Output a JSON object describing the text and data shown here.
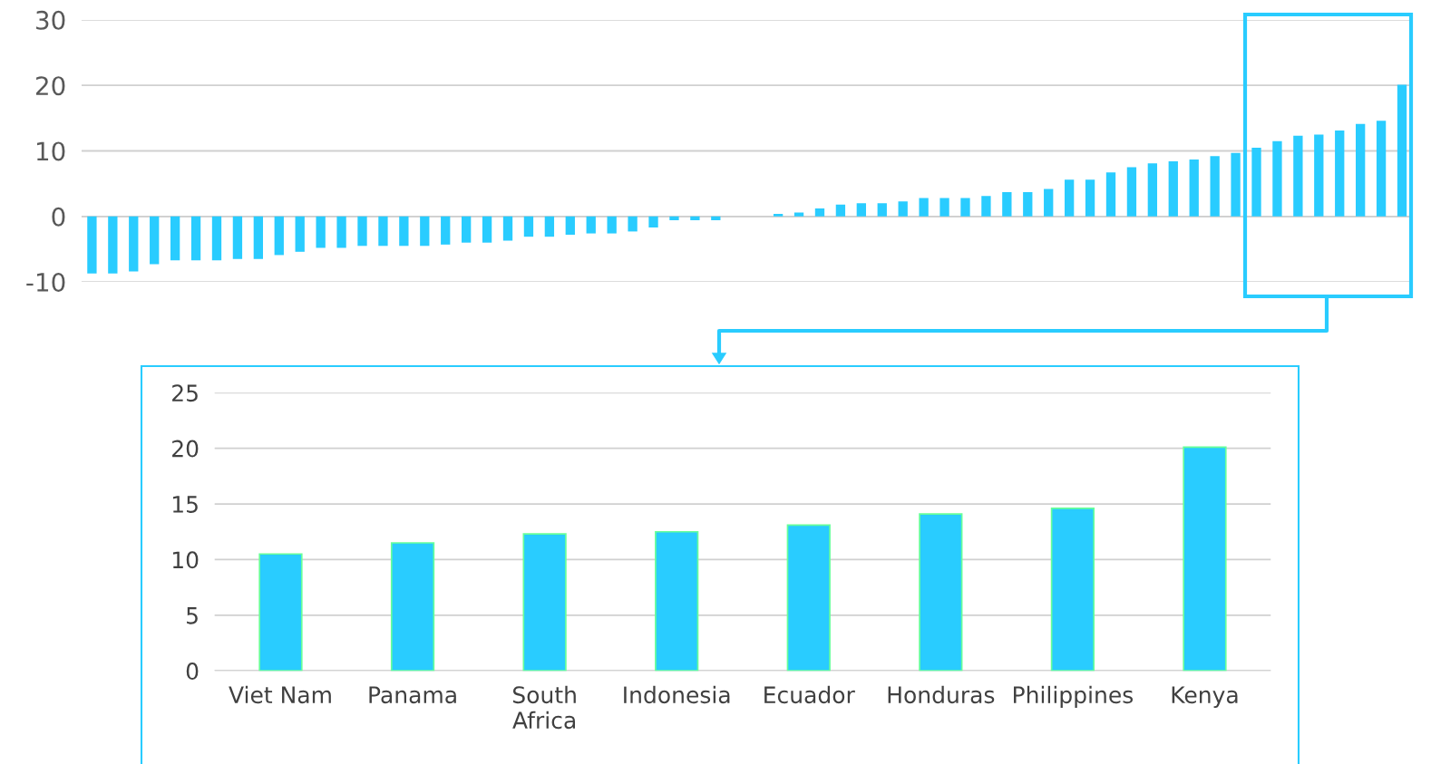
{
  "chart_data": [
    {
      "type": "bar",
      "categories": [
        null,
        null,
        null,
        null,
        null,
        null,
        null,
        null,
        null,
        null,
        null,
        null,
        null,
        null,
        null,
        null,
        null,
        null,
        null,
        null,
        null,
        null,
        null,
        null,
        null,
        null,
        null,
        null,
        null,
        null,
        null,
        null,
        null,
        null,
        null,
        null,
        null,
        null,
        null,
        null,
        null,
        null,
        null,
        null,
        null,
        null,
        null,
        null,
        null,
        null,
        null,
        null,
        null,
        null,
        null,
        null,
        null,
        null,
        null,
        null,
        null,
        null,
        null,
        null
      ],
      "values": [
        -8.7,
        -8.7,
        -8.4,
        -7.3,
        -6.7,
        -6.7,
        -6.7,
        -6.5,
        -6.5,
        -5.9,
        -5.4,
        -4.8,
        -4.8,
        -4.5,
        -4.5,
        -4.5,
        -4.5,
        -4.3,
        -4.0,
        -4.0,
        -3.7,
        -3.1,
        -3.1,
        -2.8,
        -2.6,
        -2.6,
        -2.3,
        -1.7,
        -0.6,
        -0.6,
        -0.6,
        0,
        0,
        0.4,
        0.6,
        1.2,
        1.8,
        2.0,
        2.0,
        2.3,
        2.8,
        2.8,
        2.8,
        3.1,
        3.7,
        3.7,
        4.2,
        5.6,
        5.6,
        6.7,
        7.5,
        8.1,
        8.4,
        8.7,
        9.2,
        9.7,
        10.5,
        11.5,
        12.3,
        12.5,
        13.1,
        14.1,
        14.6,
        20.1
      ],
      "color": "#29ccff",
      "ylim": [
        -10,
        30
      ],
      "yticks": [
        -10,
        0,
        10,
        20,
        30
      ],
      "grid": "y"
    },
    {
      "type": "bar",
      "categories": [
        "Viet Nam",
        "Panama",
        "South\nAfrica",
        "Indonesia",
        "Ecuador",
        "Honduras",
        "Philippines",
        "Kenya"
      ],
      "values": [
        10.5,
        11.5,
        12.3,
        12.5,
        13.1,
        14.1,
        14.6,
        20.1
      ],
      "color": "#29ccff",
      "ylim": [
        0,
        25
      ],
      "yticks": [
        0,
        5,
        10,
        15,
        20,
        25
      ],
      "grid": "y"
    }
  ]
}
